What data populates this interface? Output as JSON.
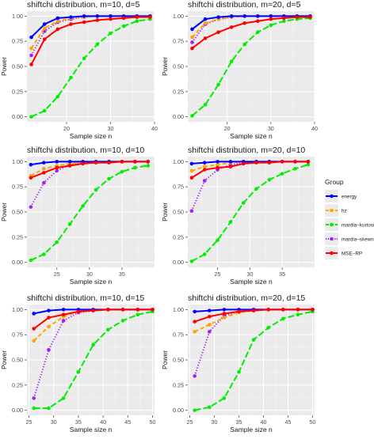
{
  "legend": {
    "title": "Group",
    "entries": [
      {
        "name": "energy",
        "color": "#0000ff",
        "dash": "solid",
        "marker": "circle"
      },
      {
        "name": "hz",
        "color": "#ffa500",
        "dash": "dashed",
        "marker": "circle"
      },
      {
        "name": "mardia−kurtosis",
        "color": "#00ee00",
        "dash": "longdash",
        "marker": "circle"
      },
      {
        "name": "mardia−skewness",
        "color": "#a020f0",
        "dash": "dotted",
        "marker": "circle"
      },
      {
        "name": "MSE−RP",
        "color": "#ff0000",
        "dash": "solid",
        "marker": "circle"
      }
    ]
  },
  "chart_data": [
    {
      "type": "line",
      "title": "shiftchi distribution, m=10, d=5",
      "xlabel": "Sample size n",
      "ylabel": "Power",
      "xlim": [
        11,
        40
      ],
      "ylim": [
        0,
        1
      ],
      "xticks": [
        20,
        30,
        40
      ],
      "yticks": [
        0,
        0.25,
        0.5,
        0.75,
        1
      ],
      "x": [
        12,
        15,
        18,
        21,
        24,
        27,
        30,
        33,
        36,
        39
      ],
      "series": [
        {
          "name": "energy",
          "values": [
            0.79,
            0.92,
            0.98,
            0.99,
            1.0,
            1.0,
            1.0,
            1.0,
            1.0,
            1.0
          ]
        },
        {
          "name": "hz",
          "values": [
            0.68,
            0.88,
            0.95,
            0.98,
            0.99,
            1.0,
            1.0,
            1.0,
            1.0,
            1.0
          ]
        },
        {
          "name": "mardia−kurtosis",
          "values": [
            0.0,
            0.06,
            0.2,
            0.39,
            0.58,
            0.72,
            0.83,
            0.9,
            0.95,
            0.97
          ]
        },
        {
          "name": "mardia−skewness",
          "values": [
            0.61,
            0.85,
            0.94,
            0.97,
            0.99,
            1.0,
            1.0,
            1.0,
            1.0,
            1.0
          ]
        },
        {
          "name": "MSE−RP",
          "values": [
            0.52,
            0.77,
            0.87,
            0.92,
            0.94,
            0.96,
            0.97,
            0.98,
            0.99,
            0.99
          ]
        }
      ]
    },
    {
      "type": "line",
      "title": "shiftchi distribution, m=20, d=5",
      "xlabel": "Sample size n",
      "ylabel": "Power",
      "xlim": [
        11,
        40
      ],
      "ylim": [
        0,
        1
      ],
      "xticks": [
        20,
        30,
        40
      ],
      "yticks": [
        0,
        0.25,
        0.5,
        0.75,
        1
      ],
      "x": [
        12,
        15,
        18,
        21,
        24,
        27,
        30,
        33,
        36,
        39
      ],
      "series": [
        {
          "name": "energy",
          "values": [
            0.87,
            0.97,
            0.99,
            1.0,
            1.0,
            1.0,
            1.0,
            1.0,
            1.0,
            1.0
          ]
        },
        {
          "name": "hz",
          "values": [
            0.79,
            0.93,
            0.97,
            0.99,
            1.0,
            1.0,
            1.0,
            1.0,
            1.0,
            1.0
          ]
        },
        {
          "name": "mardia−kurtosis",
          "values": [
            0.01,
            0.12,
            0.32,
            0.55,
            0.72,
            0.84,
            0.91,
            0.95,
            0.97,
            0.98
          ]
        },
        {
          "name": "mardia−skewness",
          "values": [
            0.74,
            0.92,
            0.97,
            0.99,
            1.0,
            1.0,
            1.0,
            1.0,
            1.0,
            1.0
          ]
        },
        {
          "name": "MSE−RP",
          "values": [
            0.68,
            0.78,
            0.84,
            0.89,
            0.93,
            0.95,
            0.97,
            0.98,
            0.99,
            0.99
          ]
        }
      ]
    },
    {
      "type": "line",
      "title": "shiftchi distribution, m=10, d=10",
      "xlabel": "Sample size n",
      "ylabel": "Power",
      "xlim": [
        20.4,
        40
      ],
      "ylim": [
        0,
        1
      ],
      "xticks": [
        25,
        30,
        35
      ],
      "yticks": [
        0,
        0.25,
        0.5,
        0.75,
        1
      ],
      "x": [
        21,
        23,
        25,
        27,
        29,
        31,
        33,
        35,
        37,
        39
      ],
      "series": [
        {
          "name": "energy",
          "values": [
            0.97,
            0.99,
            1.0,
            1.0,
            1.0,
            1.0,
            1.0,
            1.0,
            1.0,
            1.0
          ]
        },
        {
          "name": "hz",
          "values": [
            0.86,
            0.93,
            0.96,
            0.98,
            0.99,
            1.0,
            1.0,
            1.0,
            1.0,
            1.0
          ]
        },
        {
          "name": "mardia−kurtosis",
          "values": [
            0.02,
            0.08,
            0.2,
            0.38,
            0.56,
            0.72,
            0.83,
            0.9,
            0.94,
            0.96
          ]
        },
        {
          "name": "mardia−skewness",
          "values": [
            0.55,
            0.79,
            0.91,
            0.97,
            0.99,
            1.0,
            1.0,
            1.0,
            1.0,
            1.0
          ]
        },
        {
          "name": "MSE−RP",
          "values": [
            0.84,
            0.89,
            0.94,
            0.96,
            0.98,
            0.99,
            0.99,
            1.0,
            1.0,
            1.0
          ]
        }
      ]
    },
    {
      "type": "line",
      "title": "shiftchi distribution, m=20, d=10",
      "xlabel": "Sample size n",
      "ylabel": "Power",
      "xlim": [
        20.4,
        40
      ],
      "ylim": [
        0,
        1
      ],
      "xticks": [
        25,
        30,
        35
      ],
      "yticks": [
        0,
        0.25,
        0.5,
        0.75,
        1
      ],
      "x": [
        21,
        23,
        25,
        27,
        29,
        31,
        33,
        35,
        37,
        39
      ],
      "series": [
        {
          "name": "energy",
          "values": [
            0.98,
            0.99,
            1.0,
            1.0,
            1.0,
            1.0,
            1.0,
            1.0,
            1.0,
            1.0
          ]
        },
        {
          "name": "hz",
          "values": [
            0.91,
            0.95,
            0.97,
            0.99,
            1.0,
            1.0,
            1.0,
            1.0,
            1.0,
            1.0
          ]
        },
        {
          "name": "mardia−kurtosis",
          "values": [
            0.01,
            0.08,
            0.22,
            0.4,
            0.59,
            0.73,
            0.82,
            0.88,
            0.93,
            0.97
          ]
        },
        {
          "name": "mardia−skewness",
          "values": [
            0.51,
            0.81,
            0.92,
            0.97,
            0.99,
            1.0,
            1.0,
            1.0,
            1.0,
            1.0
          ]
        },
        {
          "name": "MSE−RP",
          "values": [
            0.84,
            0.92,
            0.94,
            0.95,
            0.98,
            0.99,
            0.99,
            1.0,
            1.0,
            1.0
          ]
        }
      ]
    },
    {
      "type": "line",
      "title": "shiftchi distribution, m=10, d=15",
      "xlabel": "Sample size n",
      "ylabel": "Power",
      "xlim": [
        24.6,
        50.4
      ],
      "ylim": [
        0,
        1
      ],
      "xticks": [
        25,
        30,
        35,
        40,
        45,
        50
      ],
      "yticks": [
        0,
        0.25,
        0.5,
        0.75,
        1
      ],
      "x": [
        26,
        29,
        32,
        35,
        38,
        41,
        44,
        47,
        50
      ],
      "series": [
        {
          "name": "energy",
          "values": [
            0.96,
            0.99,
            1.0,
            1.0,
            1.0,
            1.0,
            1.0,
            1.0,
            1.0
          ]
        },
        {
          "name": "hz",
          "values": [
            0.69,
            0.83,
            0.93,
            0.98,
            0.99,
            1.0,
            1.0,
            1.0,
            1.0
          ]
        },
        {
          "name": "mardia−kurtosis",
          "values": [
            0.02,
            0.02,
            0.12,
            0.38,
            0.65,
            0.8,
            0.89,
            0.95,
            0.98
          ]
        },
        {
          "name": "mardia−skewness",
          "values": [
            0.12,
            0.6,
            0.89,
            0.97,
            0.99,
            1.0,
            1.0,
            1.0,
            1.0
          ]
        },
        {
          "name": "MSE−RP",
          "values": [
            0.81,
            0.92,
            0.95,
            0.98,
            0.99,
            1.0,
            1.0,
            1.0,
            1.0
          ]
        }
      ]
    },
    {
      "type": "line",
      "title": "shiftchi distribution, m=20, d=15",
      "xlabel": "Sample size n",
      "ylabel": "Power",
      "xlim": [
        24.6,
        50.4
      ],
      "ylim": [
        0,
        1
      ],
      "xticks": [
        25,
        30,
        35,
        40,
        45,
        50
      ],
      "yticks": [
        0,
        0.25,
        0.5,
        0.75,
        1
      ],
      "x": [
        26,
        29,
        32,
        35,
        38,
        41,
        44,
        47,
        50
      ],
      "series": [
        {
          "name": "energy",
          "values": [
            0.98,
            0.99,
            1.0,
            1.0,
            1.0,
            1.0,
            1.0,
            1.0,
            1.0
          ]
        },
        {
          "name": "hz",
          "values": [
            0.78,
            0.85,
            0.92,
            0.97,
            0.99,
            1.0,
            1.0,
            1.0,
            1.0
          ]
        },
        {
          "name": "mardia−kurtosis",
          "values": [
            0.0,
            0.03,
            0.12,
            0.38,
            0.7,
            0.82,
            0.91,
            0.95,
            0.98
          ]
        },
        {
          "name": "mardia−skewness",
          "values": [
            0.34,
            0.78,
            0.94,
            0.98,
            0.99,
            1.0,
            1.0,
            1.0,
            1.0
          ]
        },
        {
          "name": "MSE−RP",
          "values": [
            0.88,
            0.93,
            0.96,
            0.98,
            0.99,
            1.0,
            1.0,
            1.0,
            1.0
          ]
        }
      ]
    }
  ]
}
